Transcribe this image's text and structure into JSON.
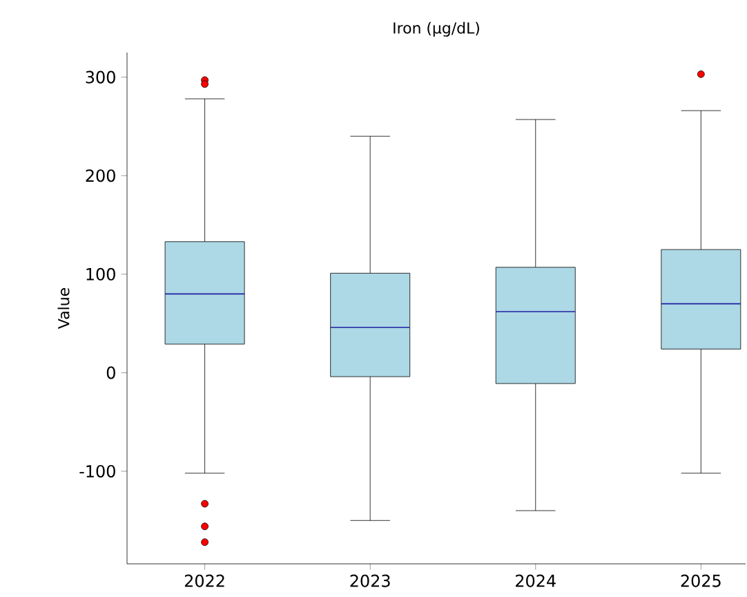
{
  "chart_data": {
    "type": "box",
    "title": "Iron (µg/dL)",
    "ylabel": "Value",
    "categories": [
      "2022",
      "2023",
      "2024",
      "2025"
    ],
    "boxes": [
      {
        "low": -102,
        "q1": 29,
        "median": 80,
        "q3": 133,
        "high": 278,
        "outliers": [
          297,
          293,
          -133,
          -156,
          -172
        ]
      },
      {
        "low": -150,
        "q1": -4,
        "median": 46,
        "q3": 101,
        "high": 240
      },
      {
        "low": -140,
        "q1": -11,
        "median": 62,
        "q3": 107,
        "high": 257
      },
      {
        "low": -102,
        "q1": 24,
        "median": 70,
        "q3": 125,
        "high": 266,
        "outliers": [
          303
        ]
      }
    ],
    "color": "#add8e6",
    "ylim": [
      -194,
      325
    ],
    "yticks": [
      -100,
      0,
      100,
      200,
      300
    ]
  }
}
